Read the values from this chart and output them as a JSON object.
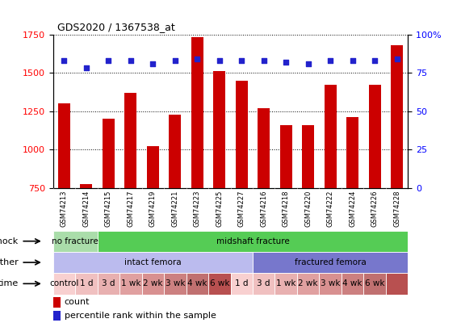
{
  "title": "GDS2020 / 1367538_at",
  "samples": [
    "GSM74213",
    "GSM74214",
    "GSM74215",
    "GSM74217",
    "GSM74219",
    "GSM74221",
    "GSM74223",
    "GSM74225",
    "GSM74227",
    "GSM74216",
    "GSM74218",
    "GSM74220",
    "GSM74222",
    "GSM74224",
    "GSM74226",
    "GSM74228"
  ],
  "counts": [
    1300,
    775,
    1200,
    1370,
    1020,
    1230,
    1730,
    1510,
    1450,
    1270,
    1160,
    1160,
    1420,
    1210,
    1420,
    1680
  ],
  "percentile_ranks": [
    83,
    78,
    83,
    83,
    81,
    83,
    84,
    83,
    83,
    83,
    82,
    81,
    83,
    83,
    83,
    84
  ],
  "bar_color": "#cc0000",
  "dot_color": "#2222cc",
  "ylim_left": [
    750,
    1750
  ],
  "ylim_right": [
    0,
    100
  ],
  "yticks_left": [
    750,
    1000,
    1250,
    1500,
    1750
  ],
  "yticks_right": [
    0,
    25,
    50,
    75,
    100
  ],
  "shock_labels": [
    {
      "text": "no fracture",
      "start": 0,
      "end": 2,
      "color": "#aaddaa"
    },
    {
      "text": "midshaft fracture",
      "start": 2,
      "end": 16,
      "color": "#55cc55"
    }
  ],
  "other_labels": [
    {
      "text": "intact femora",
      "start": 0,
      "end": 9,
      "color": "#bbbbee"
    },
    {
      "text": "fractured femora",
      "start": 9,
      "end": 16,
      "color": "#7777cc"
    }
  ],
  "time_labels": [
    {
      "text": "control",
      "start": 0,
      "end": 1,
      "color": "#f8d0d0"
    },
    {
      "text": "1 d",
      "start": 1,
      "end": 2,
      "color": "#f0c0c0"
    },
    {
      "text": "3 d",
      "start": 2,
      "end": 3,
      "color": "#e8b0b0"
    },
    {
      "text": "1 wk",
      "start": 3,
      "end": 4,
      "color": "#e0a0a0"
    },
    {
      "text": "2 wk",
      "start": 4,
      "end": 5,
      "color": "#d89090"
    },
    {
      "text": "3 wk",
      "start": 5,
      "end": 6,
      "color": "#cc8080"
    },
    {
      "text": "4 wk",
      "start": 6,
      "end": 7,
      "color": "#c07070"
    },
    {
      "text": "6 wk",
      "start": 7,
      "end": 8,
      "color": "#b85050"
    },
    {
      "text": "1 d",
      "start": 8,
      "end": 9,
      "color": "#f8d0d0"
    },
    {
      "text": "3 d",
      "start": 9,
      "end": 10,
      "color": "#f0c0c0"
    },
    {
      "text": "1 wk",
      "start": 10,
      "end": 11,
      "color": "#e8b0b0"
    },
    {
      "text": "2 wk",
      "start": 11,
      "end": 12,
      "color": "#e0a0a0"
    },
    {
      "text": "3 wk",
      "start": 12,
      "end": 13,
      "color": "#d89090"
    },
    {
      "text": "4 wk",
      "start": 13,
      "end": 14,
      "color": "#cc8080"
    },
    {
      "text": "6 wk",
      "start": 14,
      "end": 15,
      "color": "#c07070"
    },
    {
      "text": "",
      "start": 15,
      "end": 16,
      "color": "#b85050"
    }
  ],
  "xtick_bg_color": "#d0d0d0",
  "legend_count_color": "#cc0000",
  "legend_dot_color": "#2222cc"
}
